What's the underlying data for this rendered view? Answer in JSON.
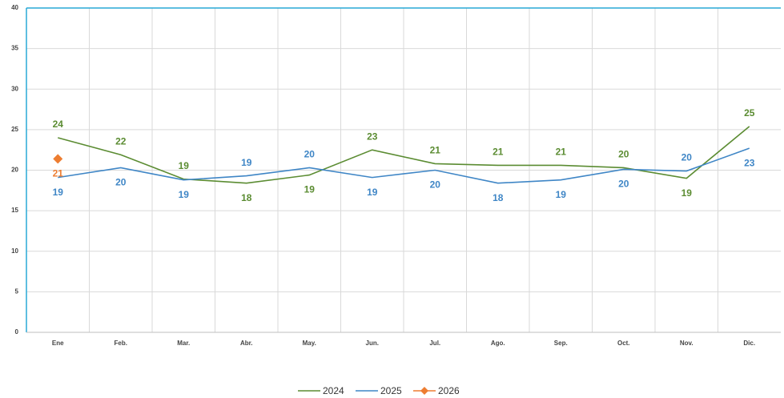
{
  "chart_data": {
    "type": "line",
    "categories": [
      "Ene",
      "Feb.",
      "Mar.",
      "Abr.",
      "May.",
      "Jun.",
      "Jul.",
      "Ago.",
      "Sep.",
      "Oct.",
      "Nov.",
      "Dic."
    ],
    "series": [
      {
        "name": "2024",
        "color": "#5b8c32",
        "values": [
          24.0,
          21.9,
          18.9,
          18.4,
          19.4,
          22.5,
          20.8,
          20.6,
          20.6,
          20.3,
          19.0,
          25.4
        ],
        "value_labels": [
          "24",
          "22",
          "19",
          "18",
          "19",
          "23",
          "21",
          "21",
          "21",
          "20",
          "19",
          "25"
        ]
      },
      {
        "name": "2025",
        "color": "#3f86c6",
        "values": [
          19.1,
          20.3,
          18.8,
          19.3,
          20.3,
          19.1,
          20.0,
          18.4,
          18.8,
          20.1,
          19.9,
          22.7
        ],
        "value_labels": [
          "19",
          "20",
          "19",
          "19",
          "20",
          "19",
          "20",
          "18",
          "19",
          "20",
          "20",
          "23"
        ]
      },
      {
        "name": "2026",
        "color": "#ed7d31",
        "values": [
          21.4,
          null,
          null,
          null,
          null,
          null,
          null,
          null,
          null,
          null,
          null,
          null
        ],
        "value_labels": [
          "21",
          null,
          null,
          null,
          null,
          null,
          null,
          null,
          null,
          null,
          null,
          null
        ]
      }
    ],
    "ylim": [
      0,
      40
    ],
    "yticks": [
      0,
      5,
      10,
      15,
      20,
      25,
      30,
      35,
      40
    ],
    "grid": true,
    "legend": "bottom"
  }
}
